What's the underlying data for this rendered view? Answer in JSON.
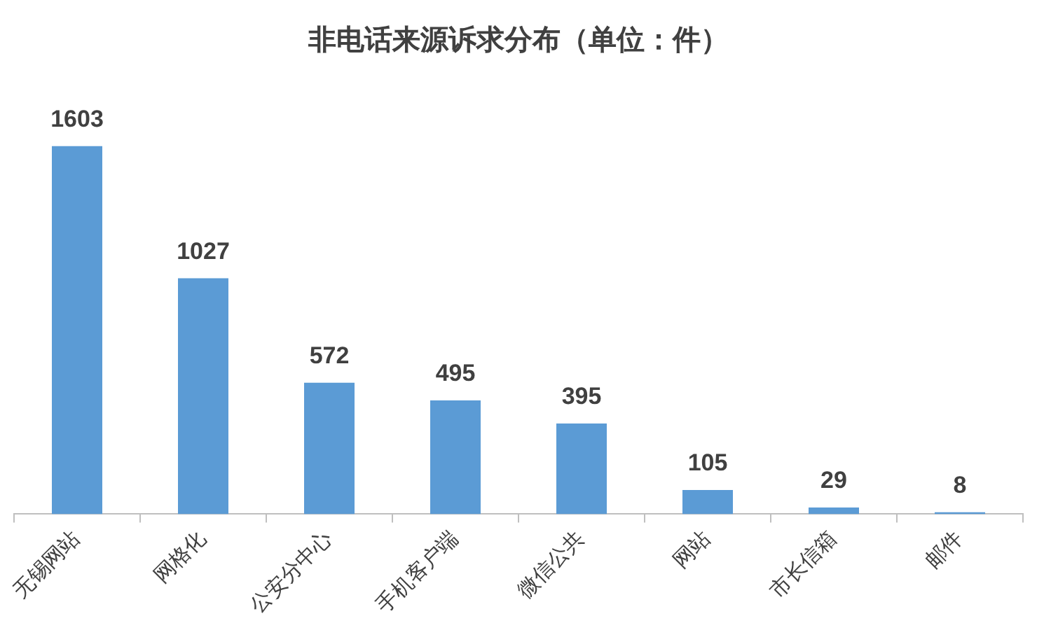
{
  "chart_data": {
    "type": "bar",
    "title": "非电话来源诉求分布（单位：件）",
    "categories": [
      "无锡网站",
      "网格化",
      "公安分中心",
      "手机客户端",
      "微信公共",
      "网站",
      "市长信箱",
      "邮件"
    ],
    "values": [
      1603,
      1027,
      572,
      495,
      395,
      105,
      29,
      8
    ],
    "color": "#5b9bd5",
    "data_labels": true,
    "grid": false,
    "legend": false
  }
}
